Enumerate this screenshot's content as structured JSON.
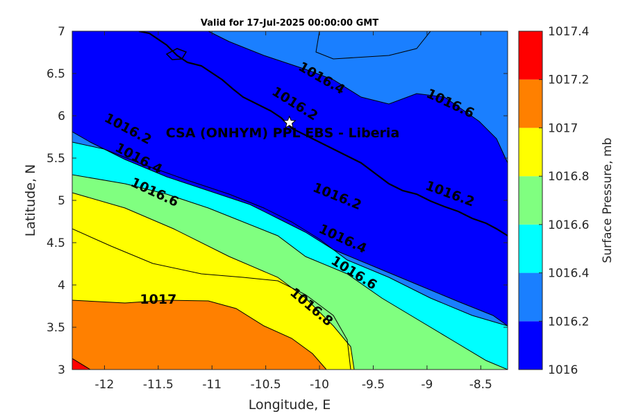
{
  "chart_data": {
    "type": "heatmap",
    "title": "Valid for 17-Jul-2025 00:00:00 GMT",
    "xlabel": "Longitude, E",
    "ylabel": "Latitude, N",
    "xlim": [
      -12.3,
      -8.25
    ],
    "ylim": [
      3,
      7
    ],
    "xticks": [
      -12,
      -11.5,
      -11,
      -10.5,
      -10,
      -9.5,
      -9,
      -8.5
    ],
    "xtick_labels": [
      "-12",
      "-11.5",
      "-11",
      "-10.5",
      "-10",
      "-9.5",
      "-9",
      "-8.5"
    ],
    "yticks": [
      3,
      3.5,
      4,
      4.5,
      5,
      5.5,
      6,
      6.5,
      7
    ],
    "ytick_labels": [
      "3",
      "3.5",
      "4",
      "4.5",
      "5",
      "5.5",
      "6",
      "6.5",
      "7"
    ],
    "colorbar": {
      "label": "Surface Pressure, mb",
      "levels": [
        1016,
        1016.2,
        1016.4,
        1016.6,
        1016.8,
        1017,
        1017.2,
        1017.4
      ],
      "tick_labels": [
        "1016",
        "1016.2",
        "1016.4",
        "1016.6",
        "1016.8",
        "1017",
        "1017.2",
        "1017.4"
      ],
      "colors": [
        "#0000ff",
        "#1a7fff",
        "#00ffff",
        "#80ff80",
        "#ffff00",
        "#ff8000",
        "#ff0000",
        "#800000"
      ]
    },
    "contour_labels": [
      {
        "text": "1016.4",
        "lon": -10.0,
        "lat": 6.4,
        "rot": 30
      },
      {
        "text": "1016.2",
        "lon": -10.25,
        "lat": 6.1,
        "rot": 32
      },
      {
        "text": "1016.6",
        "lon": -8.8,
        "lat": 6.1,
        "rot": 25
      },
      {
        "text": "1016.2",
        "lon": -11.8,
        "lat": 5.8,
        "rot": 28
      },
      {
        "text": "1016.4",
        "lon": -11.7,
        "lat": 5.45,
        "rot": 28
      },
      {
        "text": "1016.6",
        "lon": -11.55,
        "lat": 5.05,
        "rot": 25
      },
      {
        "text": "1016.2",
        "lon": -9.85,
        "lat": 5.0,
        "rot": 22
      },
      {
        "text": "1016.2",
        "lon": -8.8,
        "lat": 5.03,
        "rot": 20
      },
      {
        "text": "1016.4",
        "lon": -9.8,
        "lat": 4.5,
        "rot": 25
      },
      {
        "text": "1016.6",
        "lon": -9.7,
        "lat": 4.1,
        "rot": 32
      },
      {
        "text": "1017",
        "lon": -11.5,
        "lat": 3.78,
        "rot": 0
      },
      {
        "text": "1016.8",
        "lon": -10.1,
        "lat": 3.7,
        "rot": 40
      }
    ],
    "site": {
      "name": "CSA (ONHYM) PPL EBS  - Liberia",
      "lon": -10.28,
      "lat": 5.92
    }
  }
}
